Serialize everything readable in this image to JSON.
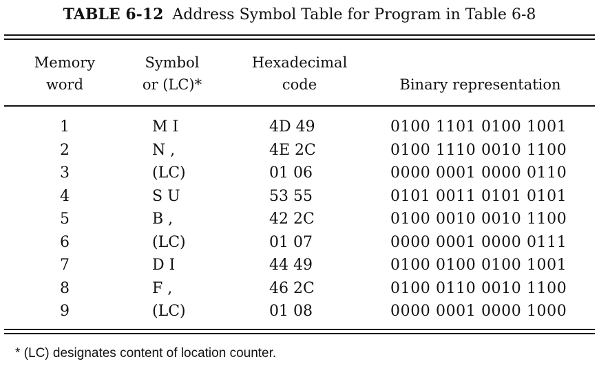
{
  "caption": {
    "label": "TABLE 6-12",
    "title": "Address Symbol Table for Program in Table 6-8"
  },
  "headers": {
    "memory_word": [
      "Memory",
      "word"
    ],
    "symbol": [
      "Symbol",
      "or (LC)*"
    ],
    "hex": [
      "Hexadecimal",
      "code"
    ],
    "binary": [
      "Binary representation"
    ]
  },
  "rows": [
    {
      "word": "1",
      "symbol": "M I",
      "hex": "4D 49",
      "binary": "0100 1101 0100 1001"
    },
    {
      "word": "2",
      "symbol": "N ,",
      "hex": "4E 2C",
      "binary": "0100 1110 0010 1100"
    },
    {
      "word": "3",
      "symbol": "(LC)",
      "hex": "01 06",
      "binary": "0000 0001 0000 0110"
    },
    {
      "word": "4",
      "symbol": "S U",
      "hex": "53 55",
      "binary": "0101 0011 0101 0101"
    },
    {
      "word": "5",
      "symbol": "B ,",
      "hex": "42 2C",
      "binary": "0100 0010 0010 1100"
    },
    {
      "word": "6",
      "symbol": "(LC)",
      "hex": "01 07",
      "binary": "0000 0001 0000 0111"
    },
    {
      "word": "7",
      "symbol": "D I",
      "hex": "44 49",
      "binary": "0100 0100 0100 1001"
    },
    {
      "word": "8",
      "symbol": "F ,",
      "hex": "46 2C",
      "binary": "0100 0110 0010 1100"
    },
    {
      "word": "9",
      "symbol": "(LC)",
      "hex": "01 08",
      "binary": "0000 0001 0000 1000"
    }
  ],
  "footnote": "* (LC) designates content of location counter."
}
